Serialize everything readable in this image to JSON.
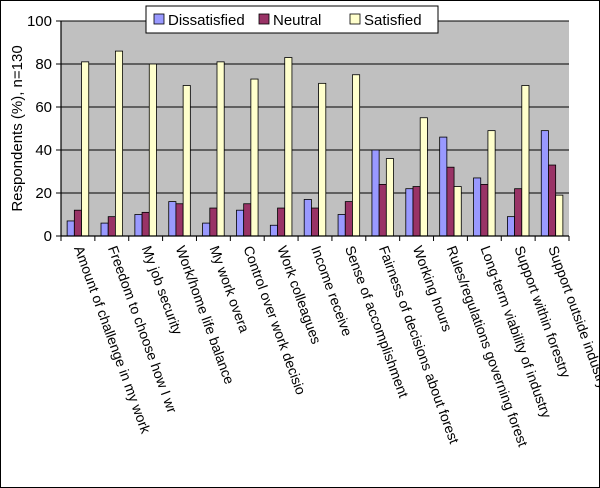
{
  "chart_data": {
    "type": "bar",
    "title": "",
    "xlabel": "",
    "ylabel": "Respondents (%), n=130",
    "ylim": [
      0,
      100
    ],
    "yticks": [
      0,
      20,
      40,
      60,
      80,
      100
    ],
    "grid": true,
    "legend_position": "top",
    "categories": [
      "Amount of challenge in my work",
      "Freedom to choose how I wr",
      "My job security",
      "Work/home life balance",
      "My work overa",
      "Control over work decisio",
      "Work colleagues",
      "Income receive",
      "Sense of accomplishment",
      "Fairness of decisions about forest",
      "Working hours",
      "Rules/regulations governing forest",
      "Long-term viability of industry",
      "Support within forestry",
      "Support outside industry"
    ],
    "series": [
      {
        "name": "Dissatisfied",
        "color": "#9999ff",
        "values": [
          7,
          6,
          10,
          16,
          6,
          12,
          5,
          17,
          10,
          40,
          22,
          46,
          27,
          9,
          49
        ]
      },
      {
        "name": "Neutral",
        "color": "#993366",
        "values": [
          12,
          9,
          11,
          15,
          13,
          15,
          13,
          13,
          16,
          24,
          23,
          32,
          24,
          22,
          33
        ]
      },
      {
        "name": "Satisfied",
        "color": "#ffffcc",
        "values": [
          81,
          86,
          80,
          70,
          81,
          73,
          83,
          71,
          75,
          36,
          55,
          23,
          49,
          70,
          19
        ]
      }
    ],
    "colors": {
      "plot_background": "#c0c0c0",
      "gridline": "#000000",
      "bar_stroke": "#000000"
    }
  }
}
